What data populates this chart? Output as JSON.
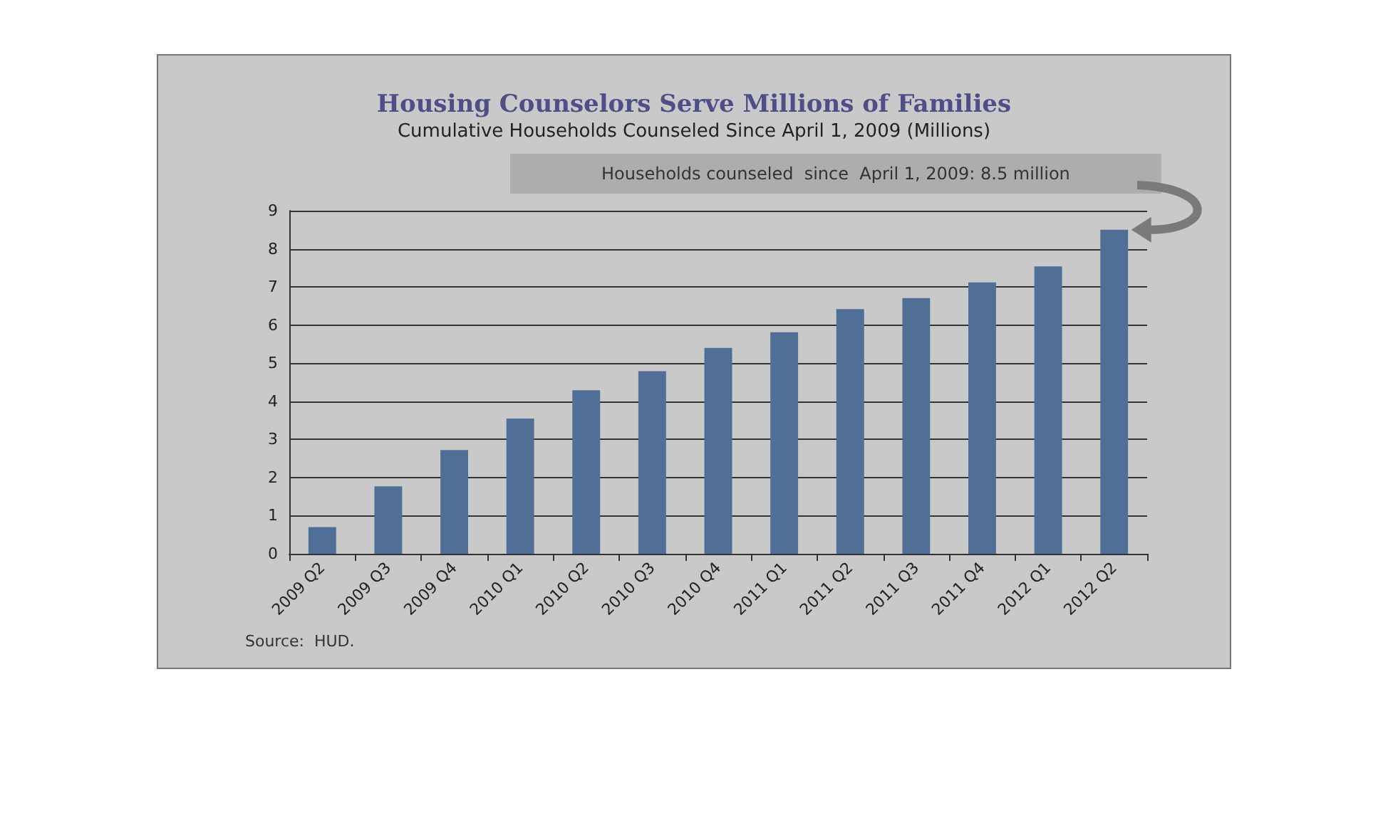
{
  "chart_data": {
    "type": "bar",
    "title": "Housing Counselors Serve Millions of Families",
    "subtitle": "Cumulative Households Counseled Since April 1, 2009 (Millions)",
    "categories": [
      "2009 Q2",
      "2009 Q3",
      "2009 Q4",
      "2010 Q1",
      "2010 Q2",
      "2010 Q3",
      "2010 Q4",
      "2011 Q1",
      "2011 Q2",
      "2011 Q3",
      "2011 Q4",
      "2012 Q1",
      "2012 Q2"
    ],
    "values": [
      0.7,
      1.77,
      2.72,
      3.55,
      4.29,
      4.79,
      5.4,
      5.81,
      6.42,
      6.71,
      7.12,
      7.54,
      8.5
    ],
    "color": "#4f6f96",
    "ylim": [
      0,
      9
    ],
    "yticks": [
      0,
      1,
      2,
      3,
      4,
      5,
      6,
      7,
      8,
      9
    ],
    "grid": "y",
    "annotations": [
      "Households counseled  since  April 1, 2009: 8.5 million",
      "Source:  HUD."
    ]
  }
}
